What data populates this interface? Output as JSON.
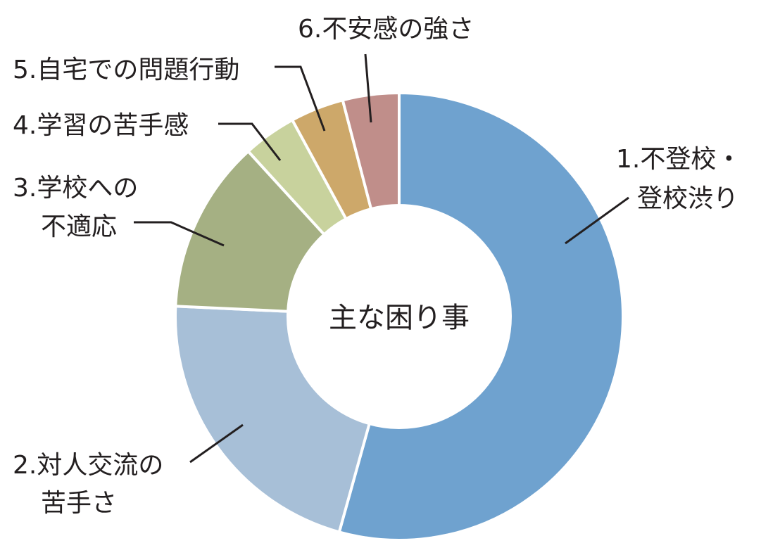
{
  "chart_data": {
    "type": "pie",
    "title": "",
    "center_label": "主な困り事",
    "hole": true,
    "slices": [
      {
        "name": "1.不登校・登校渋り",
        "value": 53.5,
        "color": "#6fa2cf",
        "label_lines": [
          "1.不登校・",
          "登校渋り"
        ]
      },
      {
        "name": "2.対人交流の苦手さ",
        "value": 21.1,
        "color": "#a7bfd7",
        "label_lines": [
          "2.対人交流の",
          "苦手さ"
        ]
      },
      {
        "name": "3.学校への不適応",
        "value": 12.3,
        "color": "#a5b083",
        "label_lines": [
          "3.学校への",
          "不適応"
        ]
      },
      {
        "name": "4.学習の苦手感",
        "value": 3.8,
        "color": "#c8d29d",
        "label_lines": [
          "4.学習の苦手感"
        ]
      },
      {
        "name": "5.自宅での問題行動",
        "value": 3.8,
        "color": "#cda86a",
        "label_lines": [
          "5.自宅での問題行動"
        ]
      },
      {
        "name": "6.不安感の強さ",
        "value": 4.0,
        "color": "#c08e8a",
        "label_lines": [
          "6.不安感の強さ"
        ]
      }
    ]
  }
}
